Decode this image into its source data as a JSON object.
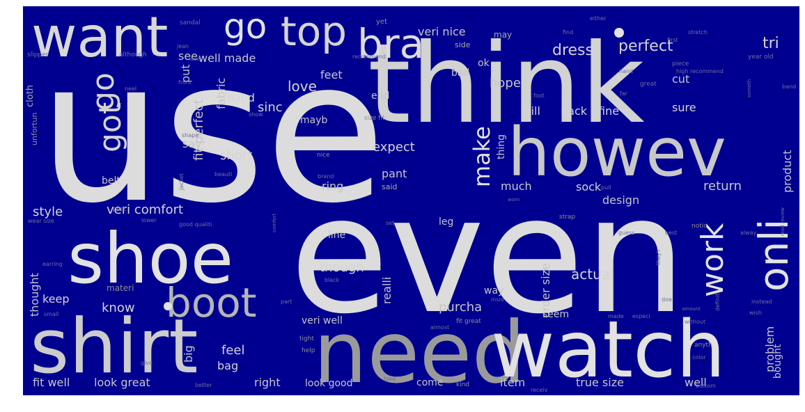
{
  "palette": {
    "background": "#000090",
    "page": "#ffffff",
    "word_tones": [
      "#e2e2e2",
      "#d4d4d4",
      "#c6c6c6",
      "#a9a9a9",
      "#8e8e8e",
      "#6f6f9f"
    ]
  },
  "words": {
    "use": "use",
    "even": "even",
    "think": "think",
    "shirt": "shirt",
    "need": "need",
    "watch": "watch",
    "howev": "howev",
    "shoe": "shoe",
    "want": "want",
    "go": "go",
    "top": "top",
    "bra": "bra",
    "got": "got",
    "boot": "boot",
    "onli": "onli",
    "work": "work",
    "make": "make",
    "perfect": "perfect",
    "dress": "dress",
    "tri": "tri",
    "veri_nice": "veri nice",
    "love": "love",
    "feet": "feet",
    "well_made": "well made",
    "see": "see",
    "put": "put",
    "fabric": "fabric",
    "fit_perfect": "fit perfect",
    "found": "found",
    "sinc": "sinc",
    "mayb": "mayb",
    "hope": "hope",
    "bad": "bad",
    "ok": "ok",
    "cut": "cut",
    "end": "end",
    "still": "still",
    "back": "back",
    "fine": "fine",
    "sure": "sure",
    "say": "say",
    "short": "short",
    "expect": "expect",
    "thing": "thing",
    "product": "product",
    "pant": "pant",
    "ring": "ring",
    "much": "much",
    "sock": "sock",
    "design": "design",
    "return": "return",
    "style": "style",
    "veri_comfort": "veri comfort",
    "leg": "leg",
    "thought": "thought",
    "though": "though",
    "realli": "realli",
    "actual": "actual",
    "order_size": "order size",
    "way": "way",
    "keep": "keep",
    "know": "know",
    "purcha": "purcha",
    "problem": "problem",
    "seem": "seem",
    "big": "big",
    "feel": "feel",
    "bag": "bag",
    "right": "right",
    "veri_well": "veri well",
    "fit_well": "fit well",
    "look_great": "look great",
    "look_good": "look good",
    "come": "come",
    "item": "item",
    "true_size": "true size",
    "well": "well",
    "bought": "bought",
    "line": "line",
    "materi": "materi",
    "belt": "belt",
    "unfortun": "unfortun",
    "cloth": "cloth",
    "said": "said",
    "side": "side",
    "may": "may",
    "yet": "yet",
    "sandal": "sandal",
    "slipper": "slipper",
    "although": "although",
    "jean": "jean",
    "lace": "lace",
    "recommend": "recommend",
    "either": "either",
    "first": "first",
    "stretch": "stretch",
    "year_old": "year old",
    "piece": "piece",
    "find": "find",
    "size_fit": "size fit",
    "great": "great",
    "foot": "foot",
    "hand": "hand",
    "high_recommend": "high recommend",
    "far": "far",
    "band": "band",
    "someth": "someth",
    "front": "front",
    "neel": "neel",
    "show": "show",
    "nice": "nice",
    "shape": "shape",
    "brand": "brand",
    "beauti": "beauti",
    "jacket": "jacket",
    "piec": "piec",
    "wear_size": "wear size",
    "lower": "lower",
    "good_qualiti": "good qualiti",
    "comfort": "comfort",
    "set": "set",
    "black": "black",
    "part": "part",
    "insid": "insid",
    "fit_great": "fit great",
    "almost": "almost",
    "tight": "tight",
    "help": "help",
    "give": "give",
    "better": "better",
    "take": "take",
    "kind": "kind",
    "receiv": "receiv",
    "color": "color",
    "bottom": "bottom",
    "anyth": "anyth",
    "without": "without",
    "made": "made",
    "especi": "especi",
    "doe": "doe",
    "wish": "wish",
    "instead": "instead",
    "notic": "notic",
    "guess": "guess",
    "best": "best",
    "alway": "alway",
    "strap": "strap",
    "pull": "pull",
    "definit": "definit",
    "read_review": "read review",
    "earring": "earring",
    "small": "small",
    "worn": "worn",
    "theyr": "they'r",
    "amount": "amount"
  }
}
